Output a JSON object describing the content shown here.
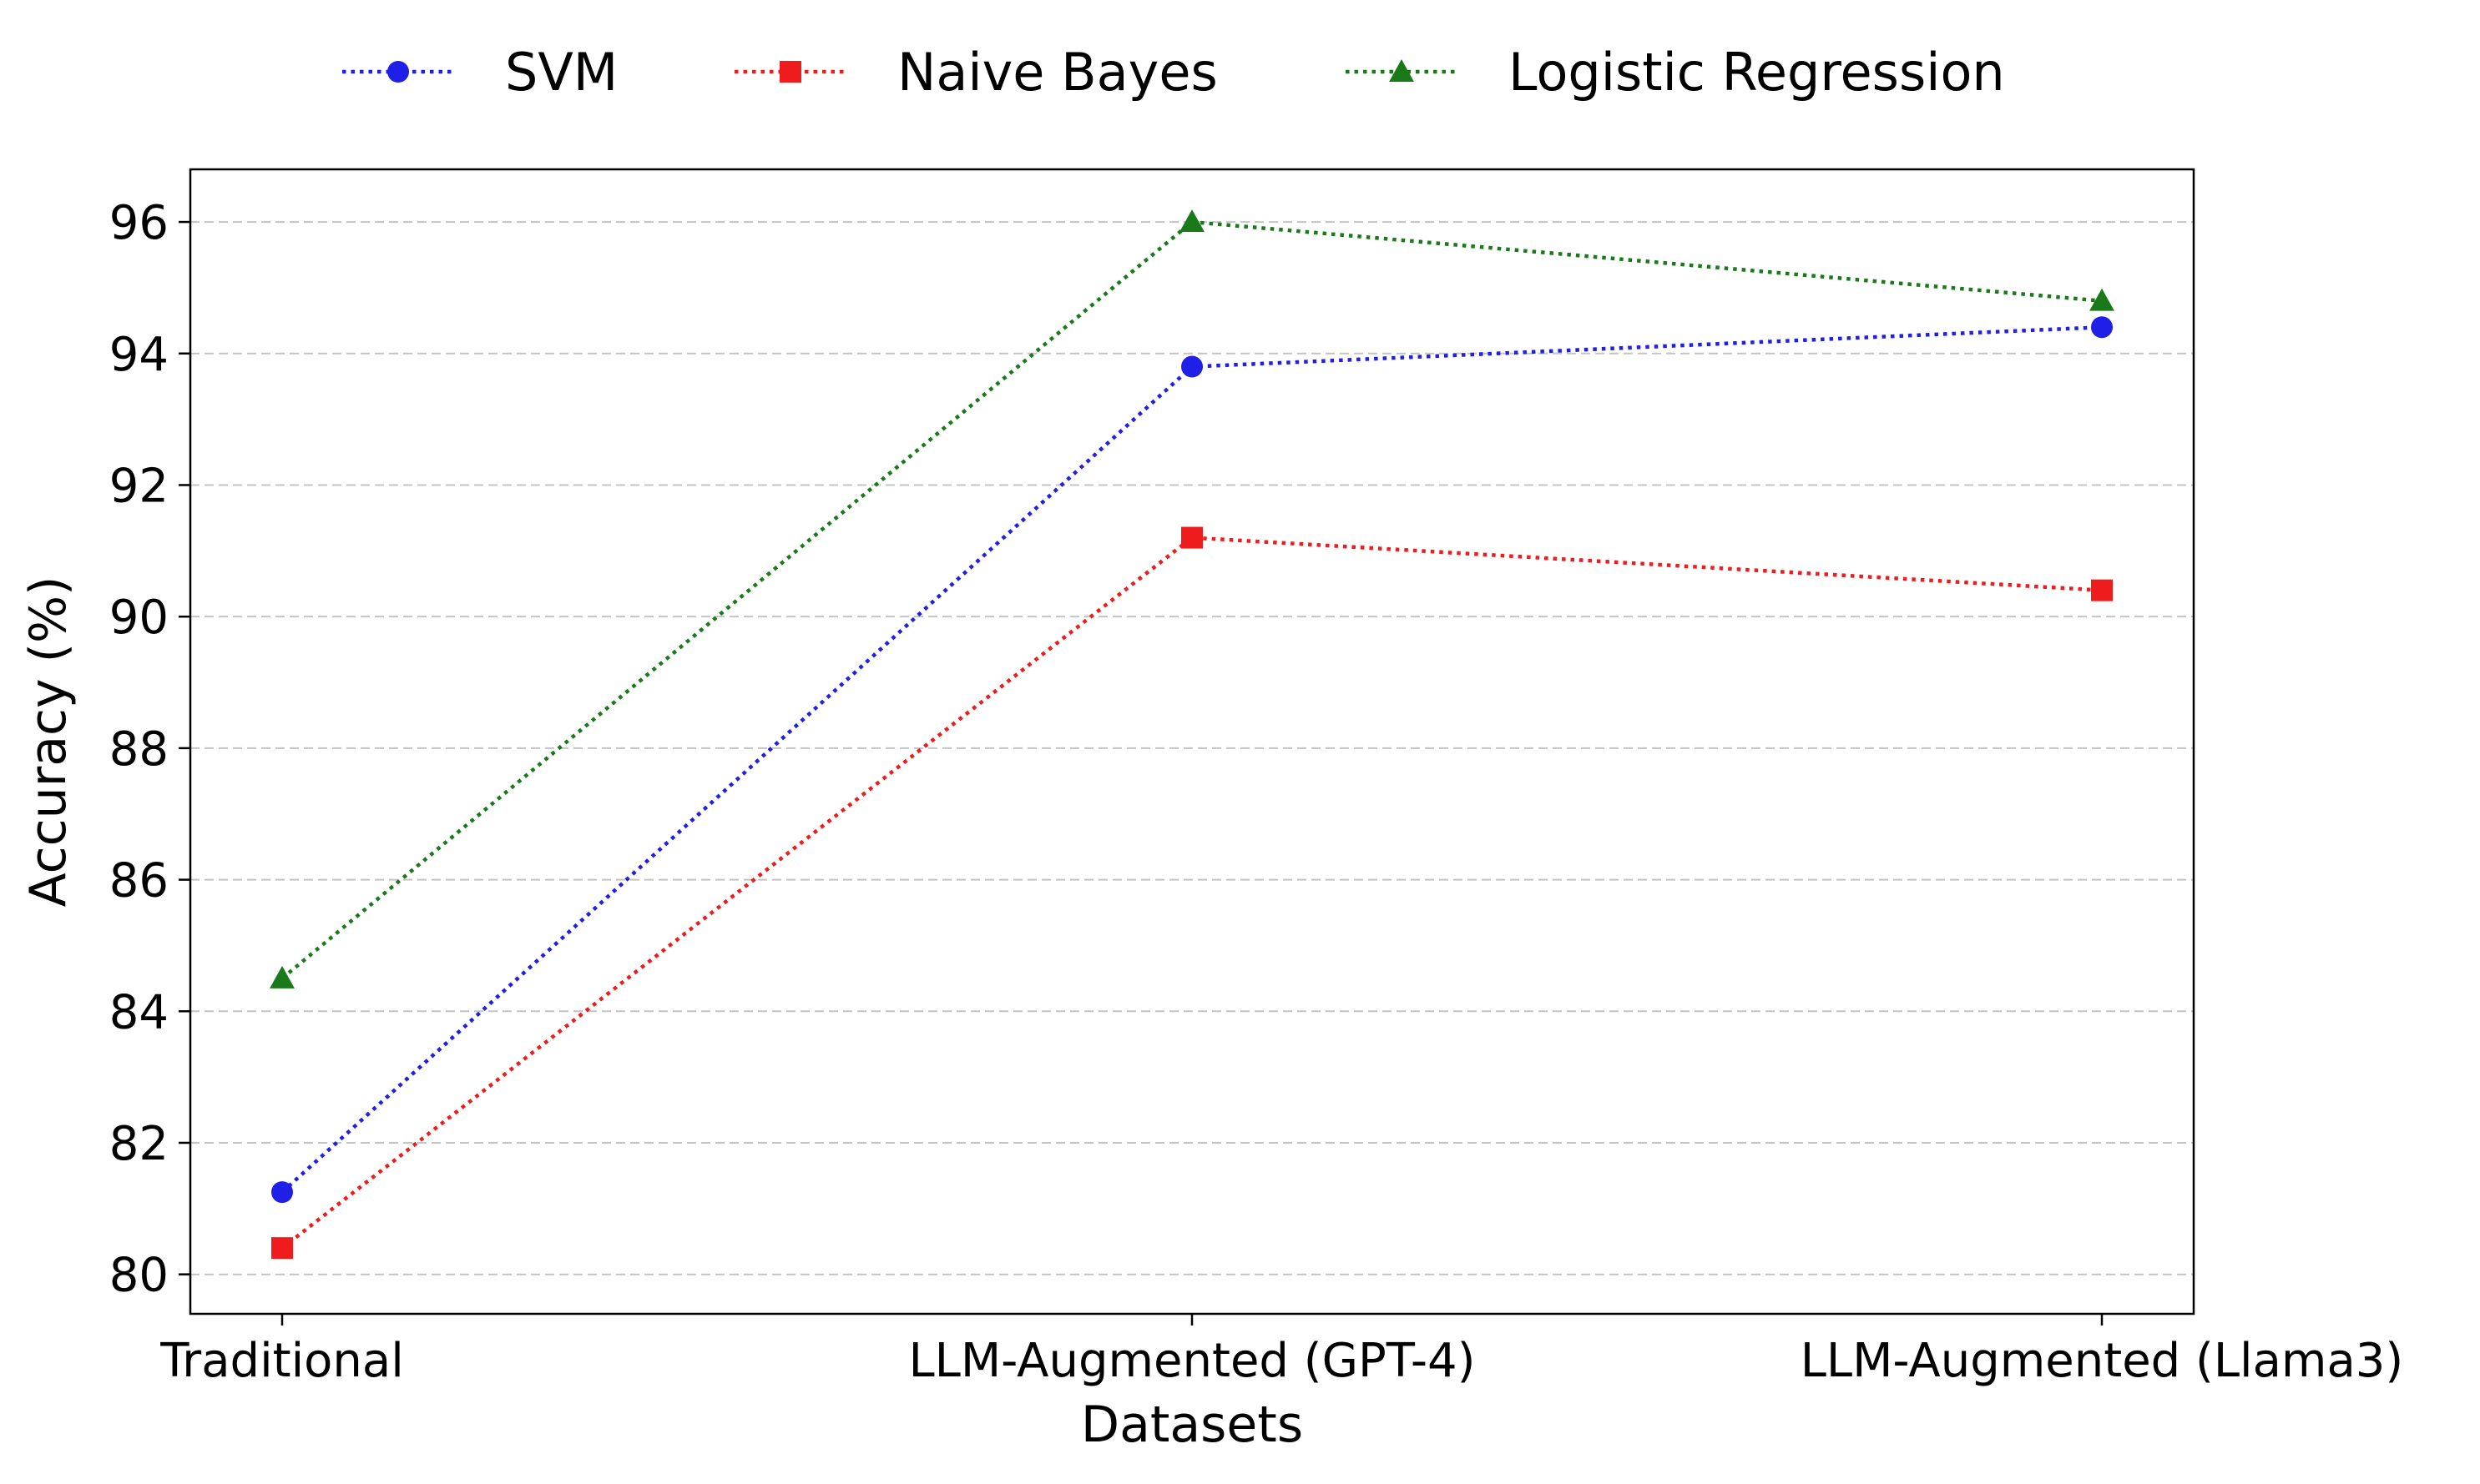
{
  "chart_data": {
    "type": "line",
    "title": "",
    "xlabel": "Datasets",
    "ylabel": "Accuracy (%)",
    "categories": [
      "Traditional",
      "LLM-Augmented (GPT-4)",
      "LLM-Augmented (Llama3)"
    ],
    "ylim": [
      79.4,
      96.8
    ],
    "yticks": [
      "80",
      "82",
      "84",
      "86",
      "88",
      "90",
      "92",
      "94",
      "96"
    ],
    "grid": "y-dashed",
    "legend_position": "top-center",
    "series": [
      {
        "name": "SVM",
        "values": [
          81.25,
          93.8,
          94.4
        ],
        "color": "#1f1fe8",
        "marker": "circle"
      },
      {
        "name": "Naive Bayes",
        "values": [
          80.4,
          91.2,
          90.4
        ],
        "color": "#ee1c1c",
        "marker": "square"
      },
      {
        "name": "Logistic Regression",
        "values": [
          84.5,
          96.0,
          94.8
        ],
        "color": "#1a7a1a",
        "marker": "triangle"
      }
    ]
  }
}
